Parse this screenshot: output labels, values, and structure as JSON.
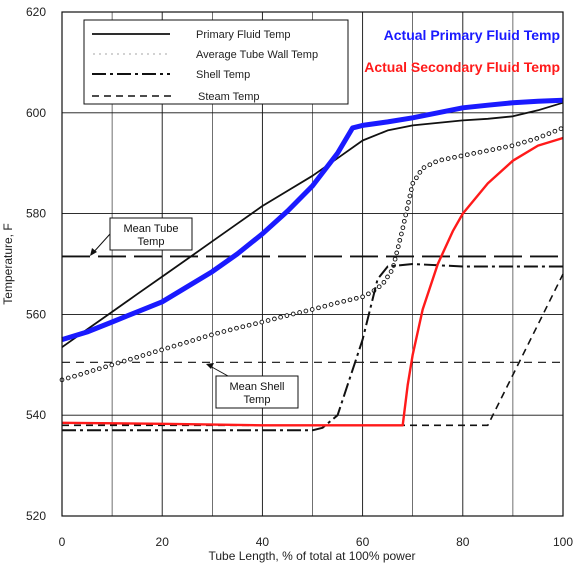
{
  "chart_data": {
    "type": "line",
    "title": "",
    "xlabel": "Tube Length, % of total at 100% power",
    "ylabel": "Temperature, F",
    "xlim": [
      0,
      100
    ],
    "ylim": [
      520,
      620
    ],
    "x_ticks": [
      "0",
      "20",
      "40",
      "60",
      "80",
      "100"
    ],
    "y_ticks": [
      "520",
      "540",
      "560",
      "580",
      "600",
      "620"
    ],
    "grid": true,
    "legend_position": "top-left",
    "series": [
      {
        "name": "Primary Fluid Temp",
        "style": "solid",
        "color": "#111111",
        "x": [
          0,
          5,
          10,
          15,
          20,
          25,
          30,
          35,
          40,
          45,
          50,
          55,
          60,
          65,
          70,
          75,
          80,
          85,
          90,
          95,
          100
        ],
        "y": [
          553.5,
          557.0,
          560.5,
          564.0,
          567.5,
          571.0,
          574.5,
          578.0,
          581.5,
          584.5,
          587.5,
          591.0,
          594.5,
          596.5,
          597.5,
          598.0,
          598.5,
          598.8,
          599.3,
          600.5,
          602.0
        ]
      },
      {
        "name": "Average Tube Wall Temp",
        "style": "dotted",
        "color": "#111111",
        "x": [
          0,
          5,
          10,
          15,
          20,
          25,
          30,
          35,
          40,
          45,
          50,
          55,
          60,
          62,
          64,
          66,
          68,
          70,
          72,
          75,
          80,
          85,
          90,
          95,
          100
        ],
        "y": [
          547.0,
          548.5,
          550.0,
          551.5,
          553.0,
          554.5,
          556.0,
          557.3,
          558.5,
          559.8,
          561.0,
          562.3,
          563.5,
          564.5,
          566.0,
          569.0,
          577.0,
          586.0,
          589.0,
          590.5,
          591.5,
          592.5,
          593.5,
          595.0,
          597.0
        ]
      },
      {
        "name": "Shell Temp",
        "style": "dashdot",
        "color": "#111111",
        "x": [
          0,
          10,
          20,
          30,
          40,
          50,
          52,
          55,
          60,
          63,
          65,
          70,
          80,
          90,
          100
        ],
        "y": [
          537.0,
          537.0,
          537.0,
          537.0,
          537.0,
          537.0,
          537.5,
          540.0,
          555.0,
          567.0,
          569.5,
          570.0,
          569.5,
          569.5,
          569.5
        ]
      },
      {
        "name": "Steam Temp",
        "style": "dashed",
        "color": "#111111",
        "x": [
          0,
          20,
          40,
          60,
          80,
          85,
          90,
          95,
          100
        ],
        "y": [
          538.0,
          538.0,
          538.0,
          538.0,
          538.0,
          538.0,
          548.0,
          558.0,
          568.0
        ]
      },
      {
        "name": "Actual Primary Fluid Temp",
        "style": "thick",
        "color": "#1a1aff",
        "x": [
          0,
          5,
          10,
          15,
          20,
          25,
          30,
          35,
          40,
          45,
          50,
          55,
          58,
          60,
          65,
          70,
          75,
          80,
          85,
          90,
          95,
          100
        ],
        "y": [
          555.0,
          556.5,
          558.5,
          560.5,
          562.5,
          565.5,
          568.5,
          572.0,
          576.0,
          580.5,
          585.5,
          592.0,
          597.0,
          597.5,
          598.2,
          599.0,
          600.0,
          601.0,
          601.5,
          602.0,
          602.3,
          602.5
        ]
      },
      {
        "name": "Actual Secondary Fluid Temp",
        "style": "solid",
        "color": "#ff1a1a",
        "x": [
          0,
          20,
          40,
          60,
          66,
          68,
          69,
          70,
          72,
          75,
          78,
          80,
          85,
          90,
          95,
          100
        ],
        "y": [
          538.5,
          538.3,
          538.0,
          538.0,
          538.0,
          538.0,
          546.0,
          552.0,
          561.0,
          570.0,
          576.5,
          580.0,
          586.0,
          590.5,
          593.5,
          595.0
        ]
      }
    ],
    "reference_lines": [
      {
        "label": "Mean Tube Temp",
        "y": 571.5,
        "style": "long-dash"
      },
      {
        "label": "Mean Shell Temp",
        "y": 550.5,
        "style": "dashed"
      }
    ],
    "legend": [
      "Primary Fluid Temp",
      "Average Tube Wall Temp",
      "Shell Temp",
      "Steam Temp"
    ],
    "outside_labels": [
      {
        "text": "Actual Primary Fluid Temp",
        "color": "#1a1aff"
      },
      {
        "text": "Actual Secondary Fluid Temp",
        "color": "#ff1a1a"
      }
    ]
  }
}
